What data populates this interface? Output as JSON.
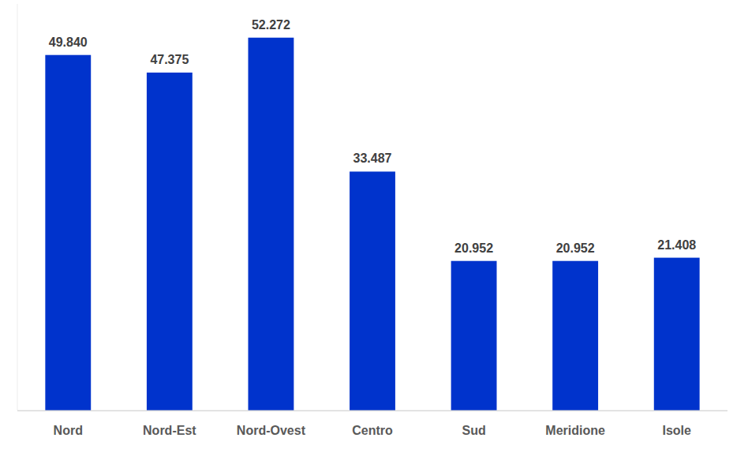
{
  "chart_data": {
    "type": "bar",
    "categories": [
      "Nord",
      "Nord-Est",
      "Nord-Ovest",
      "Centro",
      "Sud",
      "Meridione",
      "Isole"
    ],
    "values": [
      49840,
      47375,
      52272,
      33487,
      20952,
      20952,
      21408
    ],
    "value_labels": [
      "49.840",
      "47.375",
      "52.272",
      "33.487",
      "20.952",
      "20.952",
      "21.408"
    ],
    "color": "#0033cc",
    "ylim": [
      0,
      57000
    ],
    "data_labels": true,
    "tick_labels": "x",
    "grid": false
  }
}
